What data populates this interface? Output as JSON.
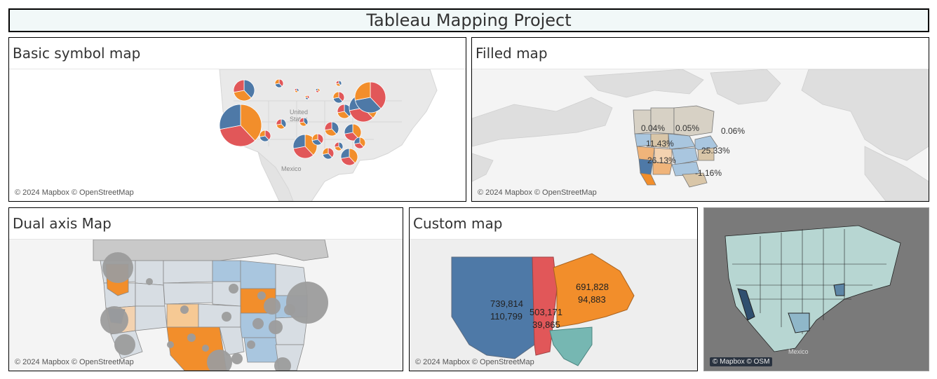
{
  "dashboard": {
    "title": "Tableau Mapping Project"
  },
  "colors": {
    "blue": "#4e79a7",
    "orange": "#f28e2b",
    "red": "#e15759",
    "teal": "#76b7b2",
    "land": "#e4e4e4",
    "water": "#f4f4f4",
    "gray": "#9c9c9c"
  },
  "panels": {
    "basic_symbol": {
      "title": "Basic symbol map",
      "attribution": "© 2024 Mapbox © OpenStreetMap",
      "place_labels": [
        "United",
        "States",
        "Mexico"
      ]
    },
    "filled": {
      "title": "Filled map",
      "attribution": "© 2024 Mapbox © OpenStreetMap",
      "labels": [
        "0.04%",
        "0.05%",
        "0.06%",
        "11.43%",
        "25.33%",
        "26.13%",
        "-1.16%"
      ]
    },
    "dual_axis": {
      "title": "Dual axis Map",
      "attribution": "© 2024 Mapbox © OpenStreetMap"
    },
    "custom": {
      "title": "Custom map",
      "attribution": "© 2024 Mapbox © OpenStreetMap",
      "regions": [
        {
          "value1": "739,814",
          "value2": "110,799"
        },
        {
          "value1": "503,171",
          "value2": "39,865"
        },
        {
          "value1": "691,828",
          "value2": "94,883"
        }
      ]
    },
    "dark": {
      "attribution": "© Mapbox © OSM",
      "place_labels": [
        "Mexico"
      ]
    }
  }
}
